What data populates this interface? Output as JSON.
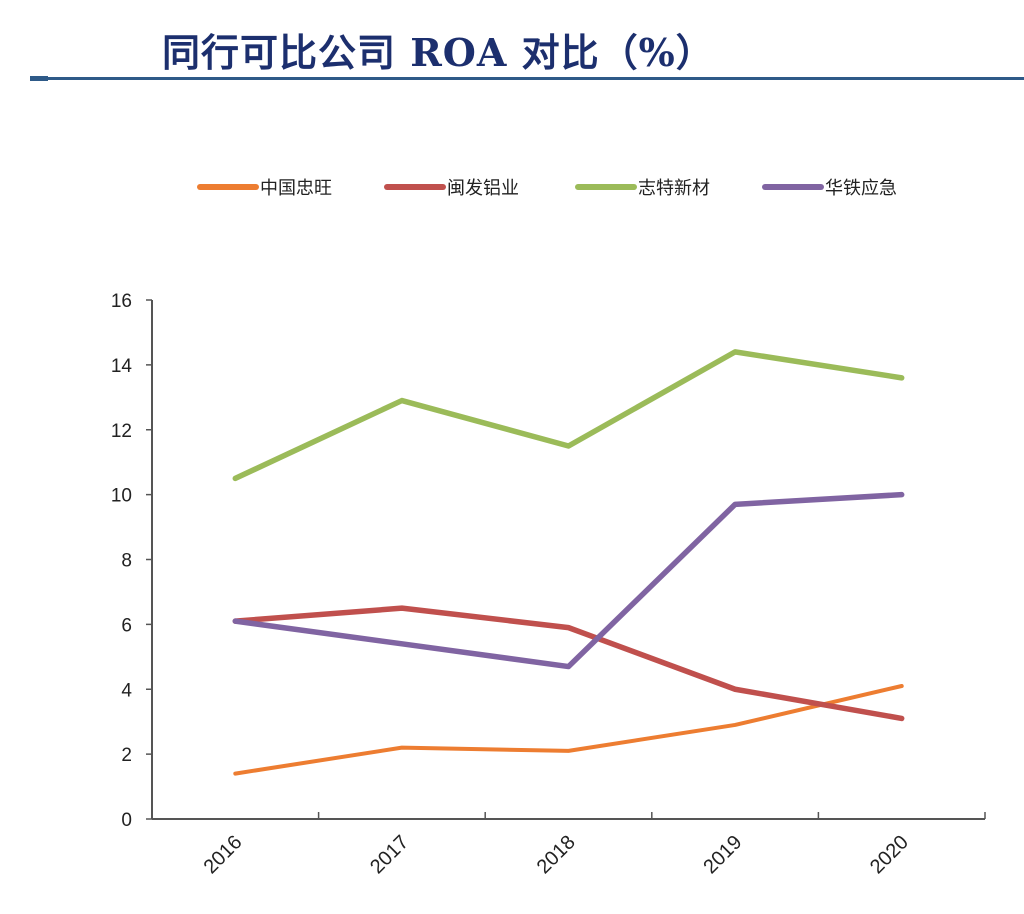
{
  "chart_data": {
    "type": "line",
    "title": "同行可比公司 ROA 对比（%）",
    "categories": [
      "2016",
      "2017",
      "2018",
      "2019",
      "2020"
    ],
    "ylim": [
      0,
      16
    ],
    "yticks": [
      0,
      2,
      4,
      6,
      8,
      10,
      12,
      14,
      16
    ],
    "grid": false,
    "legend": "top",
    "series": [
      {
        "name": "中国忠旺",
        "color": "#ED7D31",
        "values": [
          1.4,
          2.2,
          2.1,
          2.9,
          4.1
        ]
      },
      {
        "name": "闽发铝业",
        "color": "#C0504D",
        "values": [
          6.1,
          6.5,
          5.9,
          4.0,
          3.1
        ]
      },
      {
        "name": "志特新材",
        "color": "#9BBB59",
        "values": [
          10.5,
          12.9,
          11.5,
          14.4,
          13.6
        ]
      },
      {
        "name": "华铁应急",
        "color": "#8064A2",
        "values": [
          6.1,
          5.4,
          4.7,
          9.7,
          10.0
        ]
      }
    ]
  }
}
